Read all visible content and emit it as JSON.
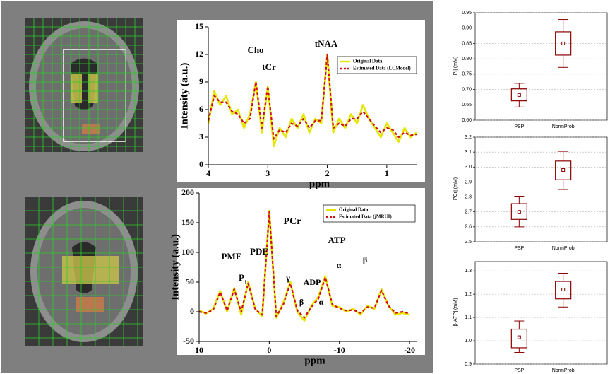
{
  "chart_data": [
    {
      "type": "line",
      "y_label": "Intensity (a.u.)",
      "x_label": "ppm",
      "x": [
        4.0,
        3.9,
        3.8,
        3.7,
        3.6,
        3.5,
        3.4,
        3.3,
        3.2,
        3.1,
        3.0,
        2.9,
        2.8,
        2.7,
        2.6,
        2.5,
        2.4,
        2.3,
        2.2,
        2.1,
        2.0,
        1.9,
        1.8,
        1.7,
        1.6,
        1.5,
        1.4,
        1.3,
        1.2,
        1.1,
        1.0,
        0.9,
        0.8,
        0.7,
        0.6,
        0.5
      ],
      "series": [
        {
          "name": "Original Data",
          "color": "#e6e600",
          "values": [
            4.5,
            8.0,
            6.5,
            7.5,
            5.5,
            6.0,
            4.0,
            5.5,
            9.0,
            3.5,
            8.5,
            2.0,
            4.0,
            3.0,
            5.0,
            4.0,
            5.5,
            3.5,
            5.0,
            4.5,
            12.0,
            3.5,
            5.0,
            4.0,
            5.5,
            4.5,
            6.5,
            5.0,
            4.0,
            3.0,
            4.5,
            3.5,
            2.5,
            4.0,
            3.0,
            3.5
          ]
        },
        {
          "name": "Estimated Data (LCModel)",
          "color": "#d01010",
          "style": "dashed",
          "values": [
            4.8,
            7.5,
            6.8,
            6.8,
            5.8,
            5.5,
            4.5,
            5.0,
            9.0,
            4.0,
            8.5,
            2.8,
            3.8,
            3.5,
            4.5,
            4.2,
            5.0,
            4.0,
            4.8,
            4.8,
            12.0,
            4.0,
            4.5,
            4.2,
            5.0,
            5.0,
            5.8,
            5.0,
            4.2,
            3.5,
            4.0,
            3.8,
            3.0,
            3.5,
            3.2,
            3.3
          ]
        }
      ],
      "annotations": [
        "Cho",
        "tCr",
        "tNAA"
      ],
      "xlim": [
        4,
        0.5
      ],
      "ylim": [
        0,
        15
      ],
      "xticks": [
        4,
        3,
        2,
        1
      ],
      "yticks": [
        0,
        3,
        6,
        9,
        12,
        15
      ]
    },
    {
      "type": "line",
      "y_label": "Intensity (a.u.)",
      "x_label": "ppm",
      "x": [
        10,
        9,
        8,
        7,
        6,
        5,
        4,
        3,
        2,
        1,
        0,
        -1,
        -2,
        -3,
        -4,
        -5,
        -6,
        -7,
        -8,
        -9,
        -10,
        -11,
        -12,
        -13,
        -14,
        -15,
        -16,
        -17,
        -18,
        -19,
        -20
      ],
      "series": [
        {
          "name": "Original Data",
          "color": "#e6e600",
          "values": [
            2,
            -3,
            5,
            35,
            0,
            40,
            -5,
            50,
            5,
            -8,
            170,
            -10,
            15,
            50,
            0,
            -15,
            10,
            25,
            60,
            10,
            8,
            0,
            5,
            -5,
            10,
            5,
            38,
            10,
            -5,
            -2,
            -5
          ]
        },
        {
          "name": "Estimated Data (jMRUI)",
          "color": "#d01010",
          "style": "dashed",
          "values": [
            0,
            -2,
            3,
            33,
            2,
            38,
            0,
            48,
            4,
            -5,
            168,
            -8,
            12,
            48,
            2,
            -10,
            8,
            22,
            58,
            12,
            6,
            2,
            3,
            -2,
            8,
            6,
            36,
            10,
            -2,
            0,
            -3
          ]
        }
      ],
      "annotations": [
        "PCr",
        "PME",
        "PDE",
        "P",
        "i",
        "γ",
        "ADP",
        "ATP",
        "α",
        "β",
        "β",
        "α"
      ],
      "xlim": [
        10,
        -21
      ],
      "ylim": [
        -50,
        200
      ],
      "xticks": [
        10,
        0,
        -10,
        -20
      ],
      "yticks": [
        -50,
        0,
        50,
        100,
        150,
        200
      ]
    },
    {
      "type": "box",
      "y_label": "[Pi] (mM)",
      "categories": [
        "PSP",
        "NormProb"
      ],
      "color": "#8b0000",
      "grid": true,
      "boxes": [
        {
          "low": 0.643,
          "q1": 0.663,
          "median": 0.682,
          "q3": 0.702,
          "high": 0.72
        },
        {
          "low": 0.772,
          "q1": 0.812,
          "median": 0.85,
          "q3": 0.888,
          "high": 0.928
        }
      ],
      "ylim": [
        0.6,
        0.95
      ],
      "yticks": [
        {
          "value": 0.6,
          "label": "0.60"
        },
        0.65,
        {
          "value": 0.7,
          "label": "0.70"
        },
        0.75,
        {
          "value": 0.8,
          "label": "0.80"
        },
        0.85,
        {
          "value": 0.9,
          "label": "0.90"
        },
        0.95
      ]
    },
    {
      "type": "box",
      "y_label": "[PCr] (mM)",
      "categories": [
        "PSP",
        "NormProb"
      ],
      "color": "#8b0000",
      "grid": true,
      "boxes": [
        {
          "low": 2.6,
          "q1": 2.65,
          "median": 2.7,
          "q3": 2.755,
          "high": 2.805
        },
        {
          "low": 2.85,
          "q1": 2.915,
          "median": 2.98,
          "q3": 3.04,
          "high": 3.105
        }
      ],
      "ylim": [
        2.5,
        3.2
      ],
      "yticks": [
        2.5,
        2.6,
        2.7,
        2.8,
        2.9,
        {
          "value": 3,
          "label": "3.0"
        },
        3.1,
        3.2
      ]
    },
    {
      "type": "box",
      "y_label": "[β-ATP] (mM)",
      "categories": [
        "PSP",
        "NormProb"
      ],
      "color": "#8b0000",
      "grid": true,
      "boxes": [
        {
          "low": 0.95,
          "q1": 0.97,
          "median": 1.015,
          "q3": 1.05,
          "high": 1.085
        },
        {
          "low": 1.145,
          "q1": 1.18,
          "median": 1.22,
          "q3": 1.255,
          "high": 1.29
        }
      ],
      "ylim": [
        0.9,
        1.34
      ],
      "yticks": [
        0.9,
        {
          "value": 1,
          "label": "1.0"
        },
        1.1,
        1.2,
        1.3
      ]
    }
  ]
}
